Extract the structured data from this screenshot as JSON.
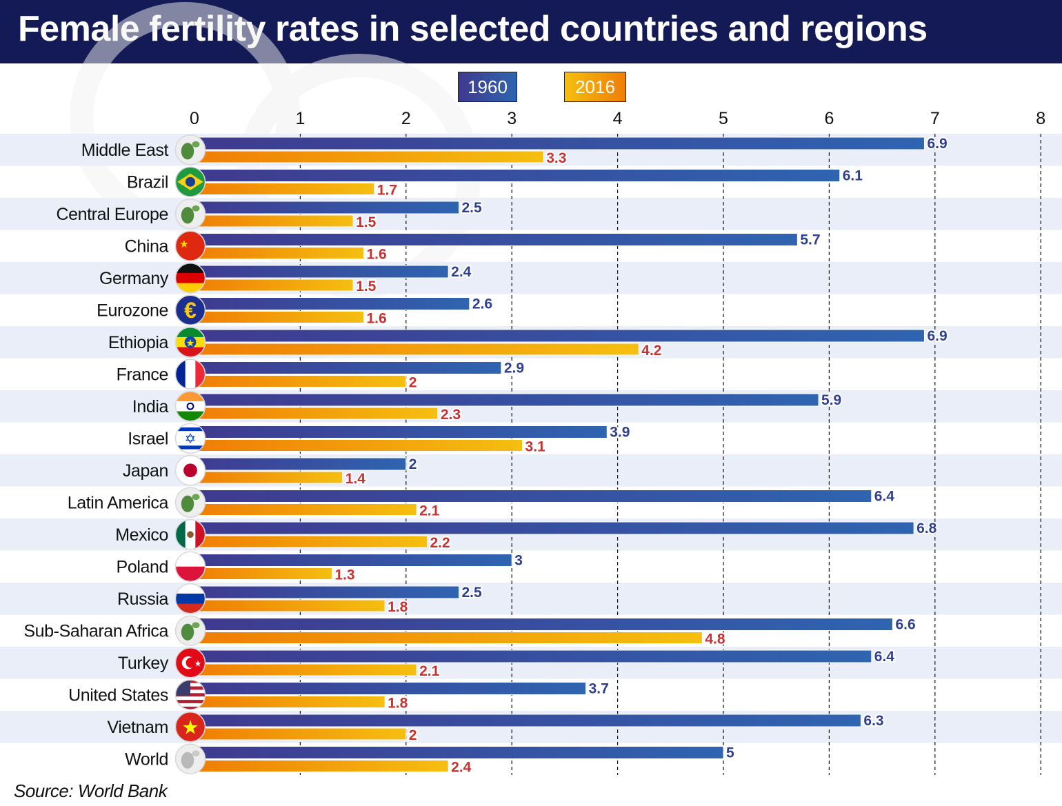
{
  "header": {
    "title": "Female fertility rates in selected countries and regions"
  },
  "legend": {
    "series_1960": "1960",
    "series_2016": "2016"
  },
  "footer": {
    "source": "Source: World Bank"
  },
  "colors": {
    "title_bar": "#141a55",
    "series_1960_start": "#3f3a8f",
    "series_1960_end": "#2f64b0",
    "series_2016_start": "#ef7d05",
    "series_2016_end": "#f5bf10",
    "row_band": "#e9eef9",
    "value_label_1960": "#2f3f8f",
    "value_label_2016": "#c8312f"
  },
  "chart_data": {
    "type": "bar",
    "orientation": "horizontal",
    "title": "Female fertility rates in selected countries and regions",
    "xlim": [
      0,
      8
    ],
    "x_ticks": [
      "0",
      "1",
      "2",
      "3",
      "4",
      "5",
      "6",
      "7",
      "8"
    ],
    "grid": "vertical dashed",
    "legend_placement": "top",
    "categories": [
      "Middle East",
      "Brazil",
      "Central Europe",
      "China",
      "Germany",
      "Eurozone",
      "Ethiopia",
      "France",
      "India",
      "Israel",
      "Japan",
      "Latin America",
      "Mexico",
      "Poland",
      "Russia",
      "Sub-Saharan Africa",
      "Turkey",
      "United States",
      "Vietnam",
      "World"
    ],
    "series": [
      {
        "name": "1960",
        "values": [
          6.9,
          6.1,
          2.5,
          5.7,
          2.4,
          2.6,
          6.9,
          2.9,
          5.9,
          3.9,
          2,
          6.4,
          6.8,
          3,
          2.5,
          6.6,
          6.4,
          3.7,
          6.3,
          5
        ],
        "labels": [
          "6.9",
          "6.1",
          "2.5",
          "5.7",
          "2.4",
          "2.6",
          "6.9",
          "2.9",
          "5.9",
          "3.9",
          "2",
          "6.4",
          "6.8",
          "3",
          "2.5",
          "6.6",
          "6.4",
          "3.7",
          "6.3",
          "5"
        ]
      },
      {
        "name": "2016",
        "values": [
          3.3,
          1.7,
          1.5,
          1.6,
          1.5,
          1.6,
          4.2,
          2,
          2.3,
          3.1,
          1.4,
          2.1,
          2.2,
          1.3,
          1.8,
          4.8,
          2.1,
          1.8,
          2,
          2.4
        ],
        "labels": [
          "3.3",
          "1.7",
          "1.5",
          "1.6",
          "1.5",
          "1.6",
          "4.2",
          "2",
          "2.3",
          "3.1",
          "1.4",
          "2.1",
          "2.2",
          "1.3",
          "1.8",
          "4.8",
          "2.1",
          "1.8",
          "2",
          "2.4"
        ]
      }
    ],
    "icons": [
      "globe-middle-east-icon",
      "brazil-flag-icon",
      "globe-europe-icon",
      "china-flag-icon",
      "germany-flag-icon",
      "euro-icon",
      "ethiopia-flag-icon",
      "france-flag-icon",
      "india-flag-icon",
      "israel-flag-icon",
      "japan-flag-icon",
      "globe-latin-america-icon",
      "mexico-flag-icon",
      "poland-flag-icon",
      "russia-flag-icon",
      "globe-africa-icon",
      "turkey-flag-icon",
      "usa-flag-icon",
      "vietnam-flag-icon",
      "globe-world-icon"
    ]
  }
}
